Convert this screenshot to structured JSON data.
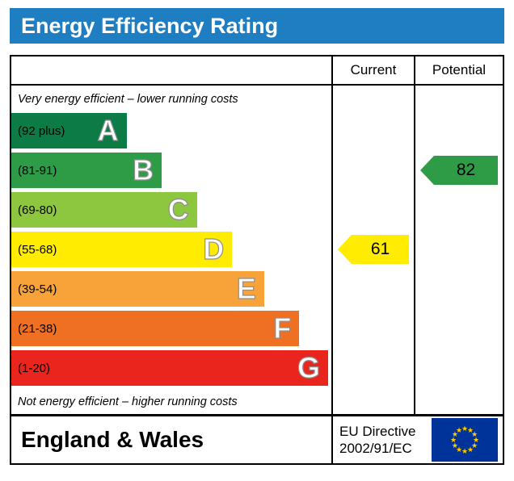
{
  "title": "Energy Efficiency Rating",
  "table": {
    "columns": {
      "current": "Current",
      "potential": "Potential"
    }
  },
  "chart_data": {
    "type": "bar",
    "title": "Energy Efficiency Rating",
    "top_note": "Very energy efficient – lower running costs",
    "bottom_note": "Not energy efficient – higher running costs",
    "bands": [
      {
        "letter": "A",
        "range_label": "(92 plus)",
        "color": "#0c7b46",
        "width_pct": 36
      },
      {
        "letter": "B",
        "range_label": "(81-91)",
        "color": "#2e9b47",
        "width_pct": 47
      },
      {
        "letter": "C",
        "range_label": "(69-80)",
        "color": "#8dc63f",
        "width_pct": 58
      },
      {
        "letter": "D",
        "range_label": "(55-68)",
        "color": "#ffec00",
        "width_pct": 69
      },
      {
        "letter": "E",
        "range_label": "(39-54)",
        "color": "#f8a33a",
        "width_pct": 79
      },
      {
        "letter": "F",
        "range_label": "(21-38)",
        "color": "#ef7022",
        "width_pct": 90
      },
      {
        "letter": "G",
        "range_label": "(1-20)",
        "color": "#e9251d",
        "width_pct": 99
      }
    ],
    "current": {
      "value": "61",
      "band": "D",
      "band_index": 3,
      "color": "#ffec00"
    },
    "potential": {
      "value": "82",
      "band": "B",
      "band_index": 1,
      "color": "#2e9b47"
    }
  },
  "footer": {
    "region": "England & Wales",
    "directive_line1": "EU Directive",
    "directive_line2": "2002/91/EC"
  },
  "colors": {
    "title_bg": "#1f7dc2",
    "title_text": "#ffffff",
    "flag_blue": "#003399",
    "flag_stars": "#ffcc00",
    "border": "#000000"
  }
}
